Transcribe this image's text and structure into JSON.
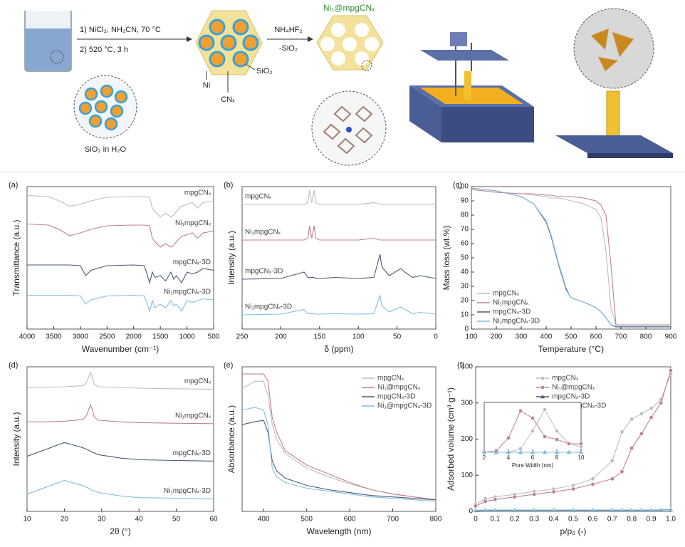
{
  "scheme": {
    "step1": "1) NiCl₂, NH₂CN, 70 °C",
    "step2": "2) 520 °C, 3 h",
    "silica_water": "SiO₂ in H₂O",
    "ni": "Ni",
    "cn": "CNₓ",
    "sio2": "SiO₂",
    "etch1": "NH₄HF₂",
    "etch2": "-SiO₂",
    "product": "Ni₁@mpgCNₓ"
  },
  "chart_data": [
    {
      "type": "line",
      "panel_label": "(a)",
      "xlabel": "Wavenumber (cm⁻¹)",
      "ylabel": "Transmittance (a.u.)",
      "xlim": [
        4000,
        500
      ],
      "xticks": [
        4000,
        3500,
        3000,
        2500,
        2000,
        1500,
        1000,
        500
      ],
      "ylim": [
        0,
        4
      ],
      "series_labels": "right",
      "x": [
        4000,
        3600,
        3400,
        3200,
        3000,
        2900,
        2800,
        2500,
        2000,
        1800,
        1700,
        1650,
        1600,
        1500,
        1400,
        1300,
        1250,
        1200,
        1100,
        1000,
        900,
        800,
        700,
        500
      ],
      "series": [
        {
          "name": "mpgCNₓ",
          "color": "#bdbdbd",
          "values": [
            3.75,
            3.72,
            3.6,
            3.45,
            3.5,
            3.55,
            3.6,
            3.7,
            3.72,
            3.72,
            3.7,
            3.4,
            3.3,
            3.15,
            3.25,
            3.15,
            3.2,
            3.3,
            3.45,
            3.5,
            3.55,
            3.4,
            3.55,
            3.6
          ]
        },
        {
          "name": "Ni₁mpgCNₓ",
          "color": "#c0808e",
          "values": [
            2.95,
            2.92,
            2.8,
            2.62,
            2.7,
            2.75,
            2.8,
            2.9,
            2.92,
            2.92,
            2.9,
            2.55,
            2.45,
            2.3,
            2.4,
            2.3,
            2.35,
            2.45,
            2.6,
            2.65,
            2.7,
            2.55,
            2.7,
            2.75
          ]
        },
        {
          "name": "mpgCNₓ-3D",
          "color": "#4a5a70",
          "values": [
            1.8,
            1.8,
            1.8,
            1.8,
            1.78,
            1.5,
            1.65,
            1.78,
            1.8,
            1.78,
            1.3,
            1.6,
            1.45,
            1.5,
            1.35,
            1.6,
            1.4,
            1.5,
            1.3,
            1.6,
            1.55,
            1.6,
            1.7,
            1.65
          ]
        },
        {
          "name": "Ni₁mpgCNₓ-3D",
          "color": "#7fbfe0",
          "values": [
            0.95,
            0.95,
            0.95,
            0.95,
            0.93,
            0.7,
            0.82,
            0.93,
            0.95,
            0.93,
            0.5,
            0.8,
            0.6,
            0.7,
            0.6,
            0.8,
            0.65,
            0.7,
            0.5,
            0.8,
            0.75,
            0.8,
            0.85,
            0.82
          ]
        }
      ]
    },
    {
      "type": "line",
      "panel_label": "(b)",
      "xlabel": "δ (ppm)",
      "ylabel": "Intensity (a.u.)",
      "xlim": [
        250,
        0
      ],
      "xticks": [
        250,
        200,
        150,
        100,
        50,
        0
      ],
      "ylim": [
        0,
        4
      ],
      "series_labels": "left",
      "x": [
        250,
        200,
        170,
        165,
        163,
        160,
        157,
        155,
        150,
        130,
        100,
        80,
        72,
        70,
        68,
        60,
        45,
        40,
        30,
        20,
        0
      ],
      "series": [
        {
          "name": "mpgCNₓ",
          "color": "#bdbdbd",
          "values": [
            3.5,
            3.5,
            3.5,
            3.55,
            3.9,
            3.55,
            3.9,
            3.55,
            3.5,
            3.5,
            3.5,
            3.55,
            3.5,
            3.5,
            3.5,
            3.5,
            3.5,
            3.5,
            3.5,
            3.5,
            3.5
          ]
        },
        {
          "name": "Ni₁mpgCNₓ",
          "color": "#c0808e",
          "values": [
            2.5,
            2.5,
            2.5,
            2.55,
            2.9,
            2.55,
            2.9,
            2.55,
            2.5,
            2.5,
            2.5,
            2.55,
            2.5,
            2.5,
            2.5,
            2.5,
            2.5,
            2.5,
            2.5,
            2.5,
            2.5
          ]
        },
        {
          "name": "mpgCNₓ-3D",
          "color": "#4a5a70",
          "values": [
            1.4,
            1.42,
            1.6,
            1.45,
            1.45,
            1.45,
            1.45,
            1.42,
            1.42,
            1.45,
            1.42,
            1.45,
            2.1,
            1.8,
            1.7,
            1.5,
            1.7,
            1.6,
            1.45,
            1.5,
            1.42
          ]
        },
        {
          "name": "Ni₁mpgCNₓ-3D",
          "color": "#7fbfe0",
          "values": [
            0.4,
            0.42,
            0.55,
            0.43,
            0.43,
            0.43,
            0.43,
            0.42,
            0.42,
            0.43,
            0.42,
            0.43,
            0.95,
            0.7,
            0.62,
            0.48,
            0.62,
            0.55,
            0.43,
            0.47,
            0.42
          ]
        }
      ]
    },
    {
      "type": "line",
      "panel_label": "(c)",
      "xlabel": "Temperature (°C)",
      "ylabel": "Mass loss (wt.%)",
      "xlim": [
        100,
        900
      ],
      "xticks": [
        100,
        200,
        300,
        400,
        500,
        600,
        700,
        800,
        900
      ],
      "ylim": [
        0,
        100
      ],
      "yticks": [
        0,
        10,
        20,
        30,
        40,
        50,
        60,
        70,
        80,
        90,
        100
      ],
      "legend": "lower left",
      "x": [
        100,
        200,
        300,
        350,
        400,
        420,
        450,
        480,
        500,
        550,
        600,
        620,
        640,
        660,
        680,
        700,
        900
      ],
      "series": [
        {
          "name": "mpgCNₓ",
          "color": "#bdbdbd",
          "values": [
            98,
            96,
            95,
            94,
            93,
            92,
            92,
            91,
            90,
            88,
            84,
            78,
            55,
            15,
            3,
            3,
            3
          ]
        },
        {
          "name": "Ni₁mpgCNₓ",
          "color": "#c0808e",
          "values": [
            98,
            96,
            95,
            95,
            94,
            94,
            93,
            93,
            93,
            92,
            90,
            87,
            80,
            45,
            3,
            3,
            3
          ]
        },
        {
          "name": "mpgCNₓ-3D",
          "color": "#4a5a70",
          "values": [
            99,
            97,
            93,
            88,
            75,
            65,
            45,
            28,
            22,
            19,
            15,
            12,
            8,
            3,
            1.5,
            1.5,
            1.5
          ]
        },
        {
          "name": "Ni₁mpgCNₓ-3D",
          "color": "#7fbfe0",
          "values": [
            99,
            97,
            93,
            88,
            76,
            66,
            46,
            29,
            22,
            19,
            15,
            12,
            8,
            3,
            2,
            2,
            2
          ]
        }
      ]
    },
    {
      "type": "line",
      "panel_label": "(d)",
      "xlabel": "2θ (°)",
      "ylabel": "Intensity (a.u.)",
      "xlim": [
        10,
        60
      ],
      "xticks": [
        10,
        20,
        30,
        40,
        50,
        60
      ],
      "ylim": [
        0,
        4.2
      ],
      "series_labels": "right",
      "x": [
        10,
        15,
        20,
        25,
        26,
        27,
        27.5,
        28,
        29,
        35,
        40,
        50,
        60
      ],
      "series": [
        {
          "name": "mpgCNₓ",
          "color": "#bdbdbd",
          "values": [
            3.6,
            3.6,
            3.62,
            3.65,
            3.75,
            4.05,
            3.9,
            3.7,
            3.62,
            3.6,
            3.58,
            3.56,
            3.55
          ]
        },
        {
          "name": "Ni₁mpgCNₓ",
          "color": "#c0808e",
          "values": [
            2.6,
            2.6,
            2.62,
            2.67,
            2.8,
            3.1,
            2.95,
            2.75,
            2.65,
            2.6,
            2.58,
            2.56,
            2.55
          ]
        },
        {
          "name": "mpgCNₓ-3D",
          "color": "#4a5a70",
          "values": [
            1.6,
            1.8,
            2.0,
            1.85,
            1.8,
            1.75,
            1.72,
            1.7,
            1.65,
            1.55,
            1.5,
            1.48,
            1.46
          ]
        },
        {
          "name": "Ni₁mpgCNₓ-3D",
          "color": "#7fbfe0",
          "values": [
            0.5,
            0.7,
            0.9,
            0.75,
            0.7,
            0.65,
            0.6,
            0.6,
            0.55,
            0.45,
            0.4,
            0.38,
            0.36
          ]
        }
      ]
    },
    {
      "type": "line",
      "panel_label": "(e)",
      "xlabel": "Wavelength (nm)",
      "ylabel": "Absorbance (a.u.)",
      "xlim": [
        350,
        800
      ],
      "xticks": [
        400,
        500,
        600,
        700,
        800
      ],
      "ylim": [
        0,
        1
      ],
      "legend": "upper right",
      "x": [
        350,
        380,
        400,
        410,
        420,
        430,
        450,
        500,
        550,
        600,
        650,
        700,
        800
      ],
      "series": [
        {
          "name": "mpgCNₓ",
          "color": "#bdbdbd",
          "values": [
            0.85,
            0.9,
            0.9,
            0.8,
            0.6,
            0.5,
            0.4,
            0.3,
            0.24,
            0.19,
            0.15,
            0.12,
            0.08
          ]
        },
        {
          "name": "Ni₁@mpgCNₓ",
          "color": "#c0808e",
          "values": [
            0.95,
            0.95,
            0.95,
            0.9,
            0.65,
            0.55,
            0.42,
            0.32,
            0.26,
            0.2,
            0.15,
            0.12,
            0.08
          ]
        },
        {
          "name": "mpgCNₓ-3D",
          "color": "#4a5a70",
          "values": [
            0.6,
            0.62,
            0.63,
            0.55,
            0.35,
            0.28,
            0.23,
            0.18,
            0.15,
            0.13,
            0.11,
            0.1,
            0.08
          ]
        },
        {
          "name": "Ni₁@mpgCNₓ-3D",
          "color": "#7fbfe0",
          "values": [
            0.7,
            0.72,
            0.7,
            0.6,
            0.3,
            0.24,
            0.2,
            0.16,
            0.14,
            0.12,
            0.1,
            0.09,
            0.07
          ]
        }
      ]
    },
    {
      "type": "line",
      "panel_label": "(f)",
      "xlabel": "p/p₀ (-)",
      "ylabel": "Adsorbed volume (cm³ g⁻¹)",
      "xlim": [
        0,
        1
      ],
      "xticks": [
        0,
        0.1,
        0.2,
        0.3,
        0.4,
        0.5,
        0.6,
        0.7,
        0.8,
        0.9,
        {
          "value": 1,
          "label": "1.0"
        }
      ],
      "ylim": [
        0,
        400
      ],
      "yticks": [
        0,
        100,
        200,
        300,
        400
      ],
      "legend": "upper center",
      "x": [
        0,
        0.05,
        0.1,
        0.2,
        0.3,
        0.4,
        0.5,
        0.6,
        0.7,
        0.75,
        0.8,
        0.85,
        0.9,
        0.95,
        1
      ],
      "series": [
        {
          "name": "mpgCNₓ",
          "color": "#bdbdbd",
          "marker": "circle",
          "values": [
            20,
            35,
            40,
            47,
            55,
            62,
            72,
            90,
            140,
            220,
            255,
            270,
            285,
            310,
            380
          ]
        },
        {
          "name": "Ni₁@mpgCNₓ",
          "color": "#c0808e",
          "marker": "circle",
          "values": [
            15,
            28,
            33,
            40,
            47,
            54,
            62,
            75,
            90,
            110,
            175,
            215,
            260,
            300,
            390
          ]
        },
        {
          "name": "mpgCNₓ-3D",
          "color": "#4a5a70",
          "marker": "triangle",
          "values": [
            2,
            3,
            3,
            3,
            3,
            3,
            3,
            3,
            3,
            3,
            3,
            3,
            3,
            4,
            5
          ]
        },
        {
          "name": "Ni₁@mpgCNₓ-3D",
          "color": "#7fbfe0",
          "marker": "triangle",
          "values": [
            3,
            4,
            4,
            4,
            4,
            4,
            4,
            4,
            4,
            4,
            4,
            4,
            4,
            5,
            6
          ]
        }
      ],
      "inset": {
        "type": "line",
        "xlabel": "Pore Width (nm)",
        "xlim": [
          2,
          10
        ],
        "xticks": [
          2,
          4,
          6,
          8,
          10
        ],
        "ylim": [
          0,
          70
        ],
        "x": [
          2,
          3,
          4,
          5,
          6,
          7,
          8,
          9,
          10
        ],
        "series": [
          {
            "name": "mpgCNₓ",
            "color": "#bdbdbd",
            "marker": "circle",
            "values": [
              0,
              0,
              0,
              5,
              30,
              60,
              30,
              12,
              8
            ]
          },
          {
            "name": "Ni₁@mpgCNₓ",
            "color": "#c0808e",
            "marker": "circle",
            "values": [
              0,
              2,
              20,
              58,
              48,
              22,
              18,
              12,
              12
            ]
          },
          {
            "name": "mpgCNₓ-3D",
            "color": "#4a5a70",
            "marker": "triangle",
            "values": [
              0,
              0,
              0,
              0,
              0,
              0,
              0,
              0,
              0
            ]
          },
          {
            "name": "Ni₁@mpgCNₓ-3D",
            "color": "#7fbfe0",
            "marker": "triangle",
            "values": [
              0,
              0,
              0,
              0,
              0,
              0,
              0,
              0,
              0
            ]
          }
        ]
      }
    }
  ]
}
